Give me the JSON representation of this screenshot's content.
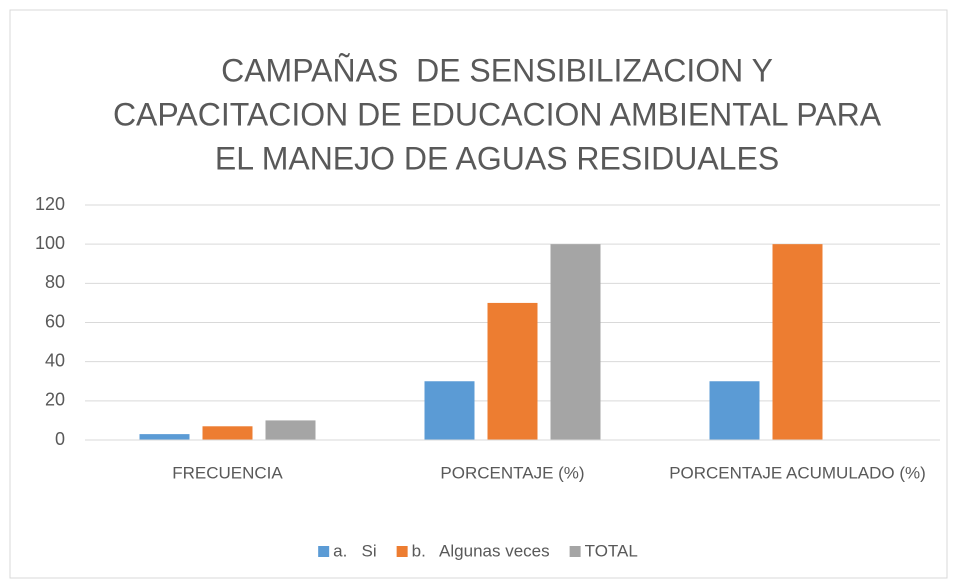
{
  "chart_data": {
    "type": "bar",
    "title": [
      "CAMPAÑAS  DE SENSIBILIZACION Y",
      "CAPACITACION DE EDUCACION AMBIENTAL PARA",
      "EL MANEJO DE AGUAS RESIDUALES"
    ],
    "categories": [
      "FRECUENCIA",
      "PORCENTAJE (%)",
      "PORCENTAJE ACUMULADO (%)"
    ],
    "series": [
      {
        "name": "a.   Si",
        "color": "#5b9bd5",
        "values": [
          3,
          30,
          30
        ]
      },
      {
        "name": "b.   Algunas veces",
        "color": "#ed7d31",
        "values": [
          7,
          70,
          100
        ]
      },
      {
        "name": "TOTAL",
        "color": "#a5a5a5",
        "values": [
          10,
          100,
          null
        ]
      }
    ],
    "ylim": [
      0,
      120
    ],
    "yticks": [
      0,
      20,
      40,
      60,
      80,
      100,
      120
    ],
    "grid": true,
    "legend": "bottom"
  }
}
